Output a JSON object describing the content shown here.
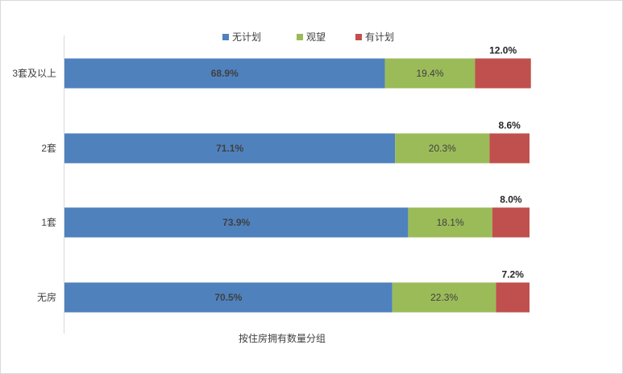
{
  "chart_data": {
    "type": "bar",
    "orientation": "horizontal",
    "stacked": true,
    "xlabel": "按住房拥有数量分组",
    "ylabel": "",
    "xlim": [
      0,
      100
    ],
    "grid": false,
    "legend_position": "top",
    "categories": [
      "3套及以上",
      "2套",
      "1套",
      "无房"
    ],
    "series": [
      {
        "name": "无计划",
        "color": "#4f81bd",
        "values": [
          68.9,
          71.1,
          73.9,
          70.5
        ],
        "labels": [
          "68.9%",
          "71.1%",
          "73.9%",
          "70.5%"
        ]
      },
      {
        "name": "观望",
        "color": "#9bbb59",
        "values": [
          19.4,
          20.3,
          18.1,
          22.3
        ],
        "labels": [
          "19.4%",
          "20.3%",
          "18.1%",
          "22.3%"
        ]
      },
      {
        "name": "有计划",
        "color": "#c0504d",
        "values": [
          12.0,
          8.6,
          8.0,
          7.2
        ],
        "labels": [
          "12.0%",
          "8.6%",
          "8.0%",
          "7.2%"
        ]
      }
    ]
  }
}
